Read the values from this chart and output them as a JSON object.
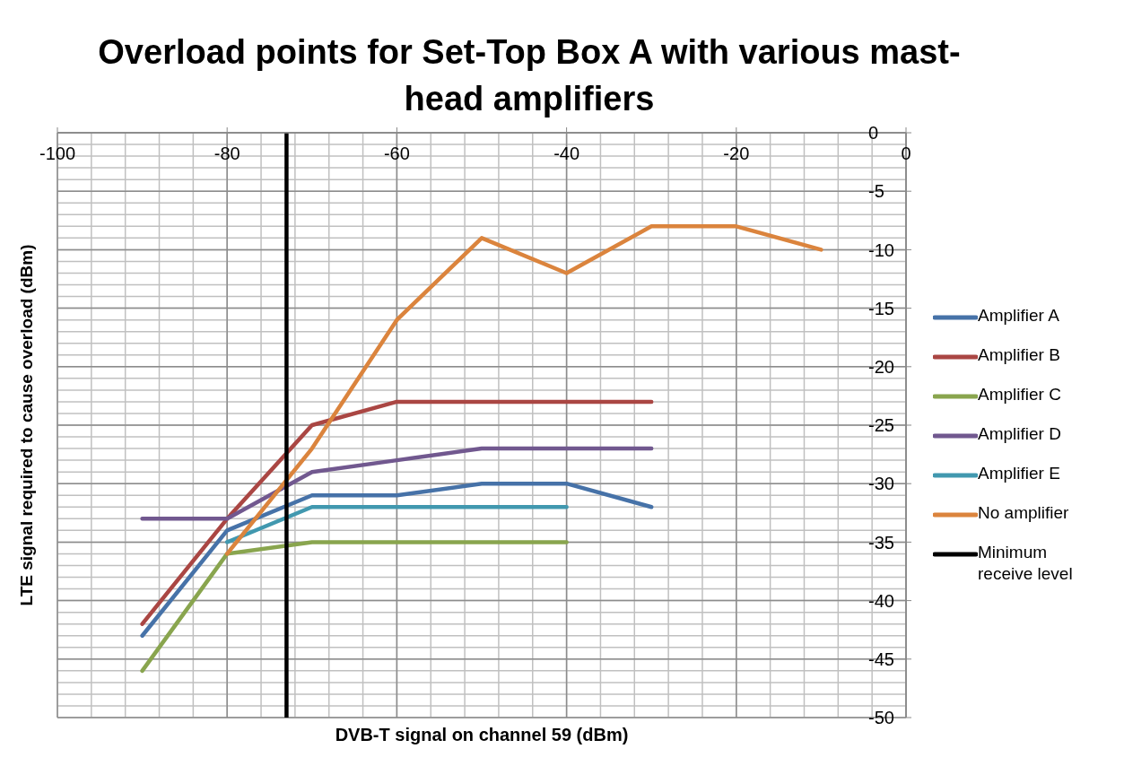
{
  "chart_data": {
    "type": "line",
    "title": "Overload points for Set-Top Box A with various mast-head amplifiers",
    "xlabel": "DVB-T signal on channel 59 (dBm)",
    "ylabel": "LTE signal required to cause overload (dBm)",
    "xlim": [
      -100,
      0
    ],
    "xticks": [
      -100,
      -80,
      -60,
      -40,
      -20,
      0
    ],
    "ylim": [
      -50,
      0
    ],
    "yticks": [
      -50,
      -45,
      -40,
      -35,
      -30,
      -25,
      -20,
      -15,
      -10,
      -5,
      0
    ],
    "grid": true,
    "legend": "right",
    "marker": "none",
    "line_style": "solid",
    "series": [
      {
        "name": "Amplifier A",
        "color": "#4672a8",
        "x": [
          -90,
          -80,
          -70,
          -60,
          -50,
          -40,
          -30
        ],
        "values": [
          -43,
          -34,
          -31,
          -31,
          -30,
          -30,
          -32
        ]
      },
      {
        "name": "Amplifier B",
        "color": "#aa4643",
        "x": [
          -90,
          -80,
          -70,
          -60,
          -50,
          -40,
          -30
        ],
        "values": [
          -42,
          -33,
          -25,
          -23,
          -23,
          -23,
          -23
        ]
      },
      {
        "name": "Amplifier C",
        "color": "#89a54e",
        "x": [
          -90,
          -80,
          -70,
          -60,
          -50,
          -40
        ],
        "values": [
          -46,
          -36,
          -35,
          -35,
          -35,
          -35
        ]
      },
      {
        "name": "Amplifier D",
        "color": "#71588f",
        "x": [
          -90,
          -80,
          -70,
          -60,
          -50,
          -40,
          -30
        ],
        "values": [
          -33,
          -33,
          -29,
          -28,
          -27,
          -27,
          -27
        ]
      },
      {
        "name": "Amplifier E",
        "color": "#4198af",
        "x": [
          -80,
          -70,
          -60,
          -50,
          -40
        ],
        "values": [
          -35,
          -32,
          -32,
          -32,
          -32
        ]
      },
      {
        "name": "No amplifier",
        "color": "#db843d",
        "x": [
          -80,
          -70,
          -60,
          -50,
          -40,
          -30,
          -20,
          -10
        ],
        "values": [
          -36,
          -27,
          -16,
          -9,
          -12,
          -8,
          -8,
          -10
        ]
      },
      {
        "name": "Minimum receive level",
        "color": "#000000",
        "x": [
          -73,
          -73
        ],
        "values": [
          0,
          -50
        ]
      }
    ]
  }
}
